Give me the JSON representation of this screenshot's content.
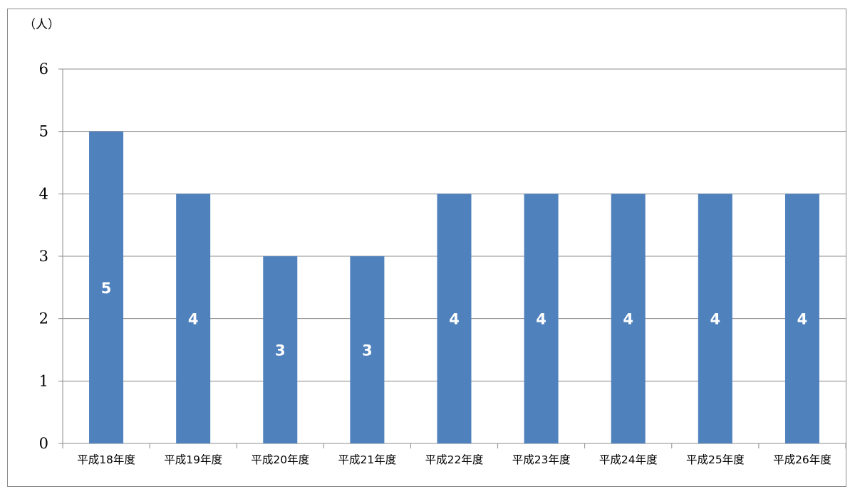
{
  "chart_data": {
    "type": "bar",
    "title": "",
    "ylabel": "（人）",
    "xlabel": "",
    "categories": [
      "平成18年度",
      "平成19年度",
      "平成20年度",
      "平成21年度",
      "平成22年度",
      "平成23年度",
      "平成24年度",
      "平成25年度",
      "平成26年度"
    ],
    "values": [
      5,
      4,
      3,
      3,
      4,
      4,
      4,
      4,
      4
    ],
    "ylim": [
      0,
      6
    ],
    "yticks": [
      0,
      1,
      2,
      3,
      4,
      5,
      6
    ],
    "grid": true,
    "data_labels": true,
    "bar_color": "#4f81bd",
    "grid_color": "#8c8c8c",
    "data_label_color": "#ffffff"
  }
}
